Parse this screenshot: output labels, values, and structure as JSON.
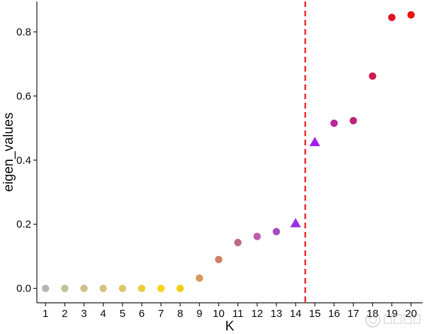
{
  "chart_data": {
    "type": "scatter",
    "xlabel": "K",
    "ylabel": "eigen_values",
    "x": [
      1,
      2,
      3,
      4,
      5,
      6,
      7,
      8,
      9,
      10,
      11,
      12,
      13,
      14,
      15,
      16,
      17,
      18,
      19,
      20
    ],
    "y": [
      0.0,
      0.0,
      0.0,
      0.0,
      0.0,
      0.0,
      0.0,
      0.0,
      0.032,
      0.09,
      0.143,
      0.162,
      0.177,
      0.203,
      0.456,
      0.515,
      0.523,
      0.662,
      0.845,
      0.853
    ],
    "markers": [
      "circle",
      "circle",
      "circle",
      "circle",
      "circle",
      "circle",
      "circle",
      "circle",
      "circle",
      "circle",
      "circle",
      "circle",
      "circle",
      "triangle",
      "triangle",
      "circle",
      "circle",
      "circle",
      "circle",
      "circle"
    ],
    "colors": [
      "#b5b5b5",
      "#c8bf9a",
      "#cfc088",
      "#d4c27a",
      "#dcc86a",
      "#e6cf3d",
      "#f5d416",
      "#f0cf10",
      "#d9985a",
      "#cf8068",
      "#c0688a",
      "#bb5cad",
      "#a84ac0",
      "#9b30e6",
      "#a020f0",
      "#b8279a",
      "#c0227a",
      "#cc1a4f",
      "#e01424",
      "#f01010"
    ],
    "xlim": [
      0.55,
      20.6
    ],
    "ylim": [
      -0.045,
      0.895
    ],
    "x_ticks": [
      "1",
      "2",
      "3",
      "4",
      "5",
      "6",
      "7",
      "8",
      "9",
      "10",
      "11",
      "12",
      "13",
      "14",
      "15",
      "16",
      "17",
      "18",
      "19",
      "20"
    ],
    "y_ticks": [
      "0.0",
      "0.2",
      "0.4",
      "0.6",
      "0.8"
    ],
    "y_tick_values": [
      0.0,
      0.2,
      0.4,
      0.6,
      0.8
    ],
    "cutoff_x": 14.5,
    "cutoff_color": "#ee1c1c",
    "grid": false,
    "legend": "none"
  },
  "watermark_icon": "university-seal-icon"
}
